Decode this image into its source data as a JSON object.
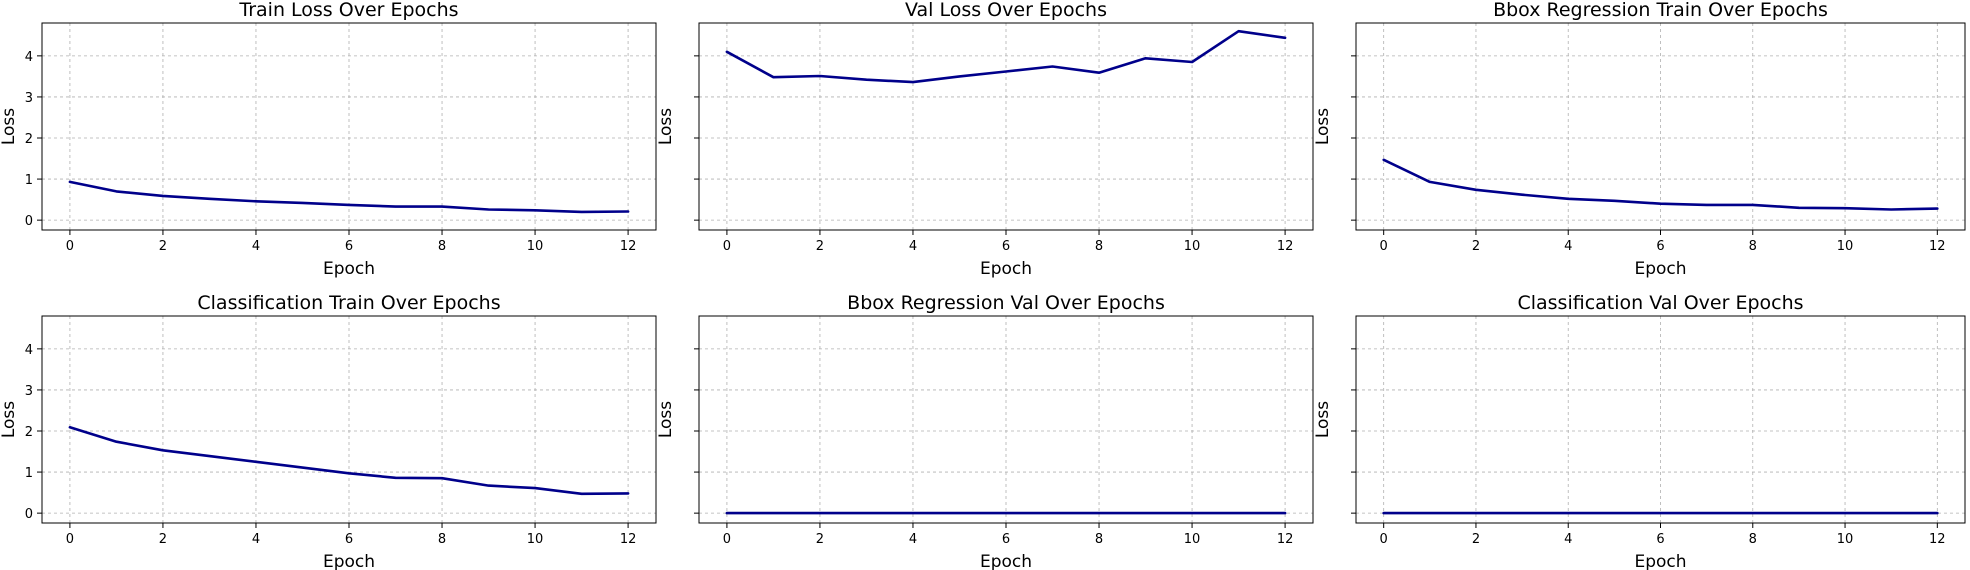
{
  "line_color": "#00008b",
  "chart_data": [
    {
      "type": "line",
      "title": "Train Loss Over Epochs",
      "xlabel": "Epoch",
      "ylabel": "Loss",
      "x": [
        0,
        1,
        2,
        3,
        4,
        5,
        6,
        7,
        8,
        9,
        10,
        11,
        12
      ],
      "values": [
        0.93,
        0.7,
        0.59,
        0.52,
        0.46,
        0.42,
        0.37,
        0.33,
        0.33,
        0.26,
        0.24,
        0.2,
        0.21
      ],
      "xlim": [
        -0.6,
        12.6
      ],
      "ylim": [
        -0.24,
        4.8
      ],
      "xticks": [
        0,
        2,
        4,
        6,
        8,
        10,
        12
      ],
      "yticks": [
        0,
        1,
        2,
        3,
        4
      ],
      "show_ytick_labels": true,
      "grid": true
    },
    {
      "type": "line",
      "title": "Val Loss Over Epochs",
      "xlabel": "Epoch",
      "ylabel": "Loss",
      "x": [
        0,
        1,
        2,
        3,
        4,
        5,
        6,
        7,
        8,
        9,
        10,
        11,
        12
      ],
      "values": [
        4.1,
        3.48,
        3.51,
        3.42,
        3.36,
        3.5,
        3.62,
        3.74,
        3.59,
        3.94,
        3.85,
        4.6,
        4.44
      ],
      "xlim": [
        -0.6,
        12.6
      ],
      "ylim": [
        -0.24,
        4.8
      ],
      "xticks": [
        0,
        2,
        4,
        6,
        8,
        10,
        12
      ],
      "yticks": [
        0,
        1,
        2,
        3,
        4
      ],
      "show_ytick_labels": false,
      "grid": true
    },
    {
      "type": "line",
      "title": "Bbox Regression Train Over Epochs",
      "xlabel": "Epoch",
      "ylabel": "Loss",
      "x": [
        0,
        1,
        2,
        3,
        4,
        5,
        6,
        7,
        8,
        9,
        10,
        11,
        12
      ],
      "values": [
        1.47,
        0.93,
        0.74,
        0.62,
        0.52,
        0.47,
        0.4,
        0.37,
        0.37,
        0.3,
        0.29,
        0.26,
        0.28
      ],
      "xlim": [
        -0.6,
        12.6
      ],
      "ylim": [
        -0.24,
        4.8
      ],
      "xticks": [
        0,
        2,
        4,
        6,
        8,
        10,
        12
      ],
      "yticks": [
        0,
        1,
        2,
        3,
        4
      ],
      "show_ytick_labels": false,
      "grid": true
    },
    {
      "type": "line",
      "title": "Classification Train Over Epochs",
      "xlabel": "Epoch",
      "ylabel": "Loss",
      "x": [
        0,
        1,
        2,
        3,
        4,
        5,
        6,
        7,
        8,
        9,
        10,
        11,
        12
      ],
      "values": [
        2.09,
        1.74,
        1.53,
        1.39,
        1.25,
        1.11,
        0.97,
        0.86,
        0.85,
        0.67,
        0.61,
        0.47,
        0.48
      ],
      "xlim": [
        -0.6,
        12.6
      ],
      "ylim": [
        -0.24,
        4.8
      ],
      "xticks": [
        0,
        2,
        4,
        6,
        8,
        10,
        12
      ],
      "yticks": [
        0,
        1,
        2,
        3,
        4
      ],
      "show_ytick_labels": true,
      "grid": true
    },
    {
      "type": "line",
      "title": "Bbox Regression Val Over Epochs",
      "xlabel": "Epoch",
      "ylabel": "Loss",
      "x": [
        0,
        1,
        2,
        3,
        4,
        5,
        6,
        7,
        8,
        9,
        10,
        11,
        12
      ],
      "values": [
        0,
        0,
        0,
        0,
        0,
        0,
        0,
        0,
        0,
        0,
        0,
        0,
        0
      ],
      "xlim": [
        -0.6,
        12.6
      ],
      "ylim": [
        -0.24,
        4.8
      ],
      "xticks": [
        0,
        2,
        4,
        6,
        8,
        10,
        12
      ],
      "yticks": [
        0,
        1,
        2,
        3,
        4
      ],
      "show_ytick_labels": false,
      "grid": true
    },
    {
      "type": "line",
      "title": "Classification Val Over Epochs",
      "xlabel": "Epoch",
      "ylabel": "Loss",
      "x": [
        0,
        1,
        2,
        3,
        4,
        5,
        6,
        7,
        8,
        9,
        10,
        11,
        12
      ],
      "values": [
        0,
        0,
        0,
        0,
        0,
        0,
        0,
        0,
        0,
        0,
        0,
        0,
        0
      ],
      "xlim": [
        -0.6,
        12.6
      ],
      "ylim": [
        -0.24,
        4.8
      ],
      "xticks": [
        0,
        2,
        4,
        6,
        8,
        10,
        12
      ],
      "yticks": [
        0,
        1,
        2,
        3,
        4
      ],
      "show_ytick_labels": false,
      "grid": true
    }
  ]
}
